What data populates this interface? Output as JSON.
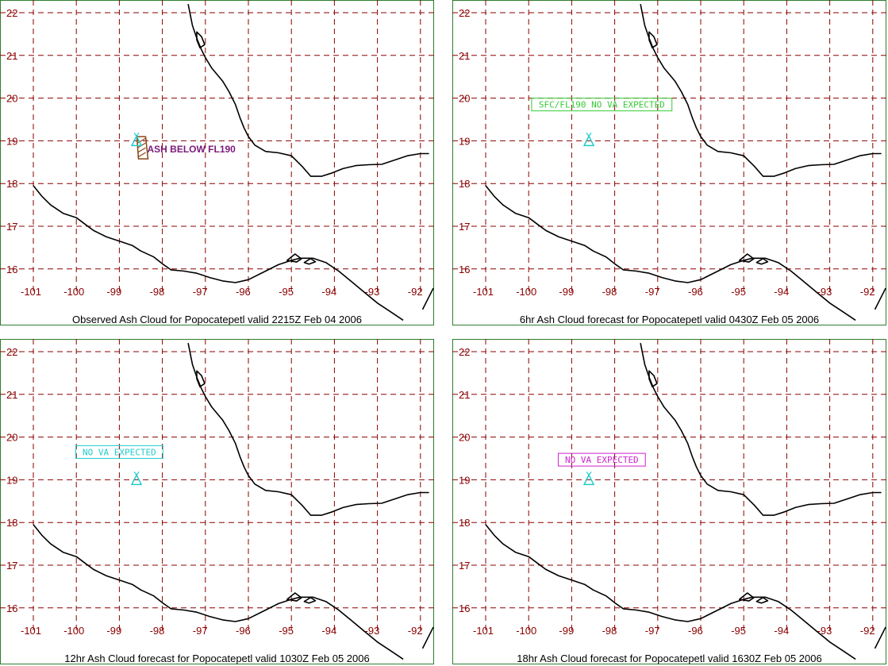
{
  "panels": [
    {
      "caption": "Observed Ash Cloud for Popocatepetl valid 2215Z Feb 04 2006",
      "annotation": {
        "text": "ASH BELOW FL190",
        "style": "plain",
        "color": "#7a1a7a",
        "lon": -98.5,
        "lat": 18.8
      },
      "ash_cloud": {
        "color": "#8b4513",
        "lon": -98.5,
        "lat": 18.8
      }
    },
    {
      "caption": "6hr Ash Cloud forecast for Popocatepetl valid 0430Z Feb 05 2006",
      "annotation": {
        "text": "SFC/FL190 NO VA EXPECTED",
        "style": "box",
        "color": "#33cc33",
        "lon": -98.3,
        "lat": 19.85
      }
    },
    {
      "caption": "12hr Ash Cloud forecast for Popocatepetl valid 1030Z Feb 05 2006",
      "annotation": {
        "text": "NO VA EXPECTED",
        "style": "box",
        "color": "#22cccc",
        "lon": -99.0,
        "lat": 19.65
      }
    },
    {
      "caption": "18hr Ash Cloud forecast for Popocatepetl valid 1630Z Feb 05 2006",
      "annotation": {
        "text": "NO VA EXPECTED",
        "style": "box",
        "color": "#cc22cc",
        "lon": -98.3,
        "lat": 19.47
      }
    }
  ],
  "map": {
    "lon_ticks": [
      -101,
      -100,
      -99,
      -98,
      -97,
      -96,
      -95,
      -94,
      -93,
      -92
    ],
    "lat_ticks": [
      16,
      17,
      18,
      19,
      20,
      21,
      22
    ],
    "volcano": {
      "lon": -98.6,
      "lat": 19.0,
      "color": "#22cccc",
      "icon": "volcano-triangle-icon"
    },
    "colors": {
      "grid": "#8b0000",
      "tick_labels": "#8b0000",
      "coast": "#000000",
      "frame": "#2e7d2e"
    }
  }
}
